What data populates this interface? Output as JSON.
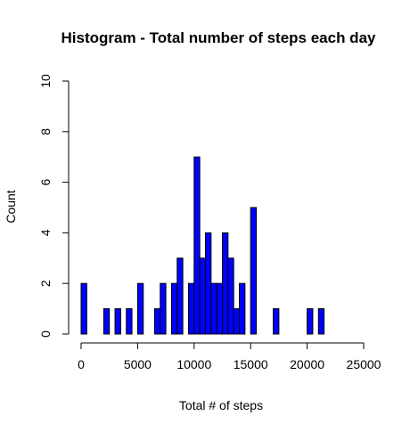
{
  "chart_data": {
    "type": "bar",
    "title": "Histogram - Total number of steps each day",
    "xlabel": "Total # of steps",
    "ylabel": "Count",
    "xlim": [
      0,
      25000
    ],
    "ylim": [
      0,
      10
    ],
    "x_ticks": [
      "0",
      "5000",
      "10000",
      "15000",
      "20000",
      "25000"
    ],
    "y_ticks": [
      "0",
      "2",
      "4",
      "6",
      "8",
      "10"
    ],
    "bin_width": 500,
    "bins": [
      {
        "start": 0,
        "count": 2
      },
      {
        "start": 2000,
        "count": 1
      },
      {
        "start": 3000,
        "count": 1
      },
      {
        "start": 4000,
        "count": 1
      },
      {
        "start": 5000,
        "count": 2
      },
      {
        "start": 6500,
        "count": 1
      },
      {
        "start": 7000,
        "count": 2
      },
      {
        "start": 8000,
        "count": 2
      },
      {
        "start": 8500,
        "count": 3
      },
      {
        "start": 9500,
        "count": 2
      },
      {
        "start": 10000,
        "count": 7
      },
      {
        "start": 10500,
        "count": 3
      },
      {
        "start": 11000,
        "count": 4
      },
      {
        "start": 11500,
        "count": 2
      },
      {
        "start": 12000,
        "count": 2
      },
      {
        "start": 12500,
        "count": 4
      },
      {
        "start": 13000,
        "count": 3
      },
      {
        "start": 13500,
        "count": 1
      },
      {
        "start": 14000,
        "count": 2
      },
      {
        "start": 15000,
        "count": 5
      },
      {
        "start": 17000,
        "count": 1
      },
      {
        "start": 20000,
        "count": 1
      },
      {
        "start": 21000,
        "count": 1
      }
    ],
    "bar_color": "#0000ff",
    "grid": false,
    "legend": "none"
  }
}
